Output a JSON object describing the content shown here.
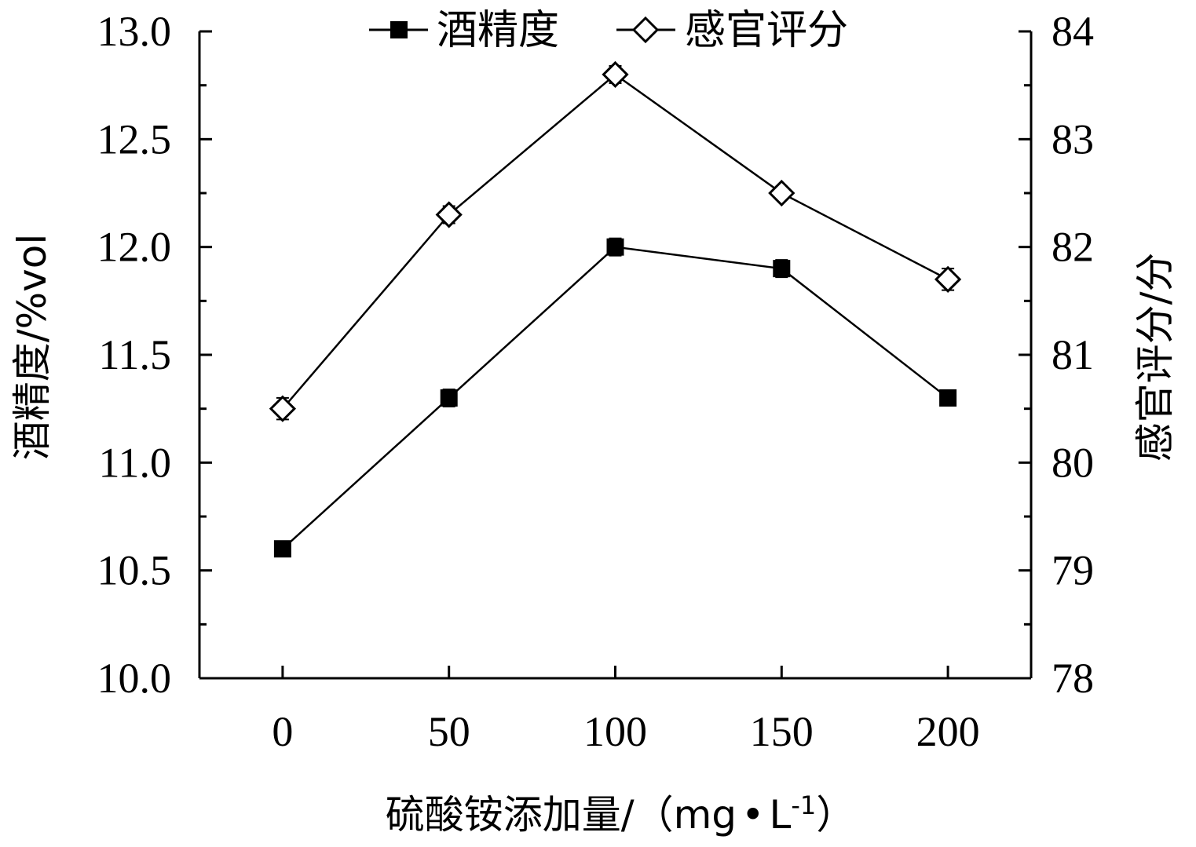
{
  "chart_data": {
    "type": "line",
    "x_title": "硫酸铵添加量/（mg",
    "x_title_dot": "•",
    "x_title_unit": "L",
    "x_title_sup": "-1",
    "x_title_close": "）",
    "y_left_title": "酒精度/%vol",
    "y_right_title": "感官评分/分",
    "x": [
      0,
      50,
      100,
      150,
      200
    ],
    "x_tick_labels": [
      "0",
      "50",
      "100",
      "150",
      "200"
    ],
    "x_range": [
      -25,
      225
    ],
    "y_left_range": [
      10.0,
      13.0
    ],
    "y_left_tick_labels": [
      "10.0",
      "10.5",
      "11.0",
      "11.5",
      "12.0",
      "12.5",
      "13.0"
    ],
    "y_right_range": [
      78,
      84
    ],
    "y_right_tick_labels": [
      "78",
      "79",
      "80",
      "81",
      "82",
      "83",
      "84"
    ],
    "grid": false,
    "legend_position": "top-center",
    "series": [
      {
        "name": "酒精度",
        "axis": "left",
        "marker": "filled-square",
        "color": "#000000",
        "values": [
          10.6,
          11.3,
          12.0,
          11.9,
          11.3
        ],
        "errors": [
          0.03,
          0.04,
          0.04,
          0.04,
          0.03
        ]
      },
      {
        "name": "感官评分",
        "axis": "right",
        "marker": "open-diamond",
        "color": "#000000",
        "values": [
          80.5,
          82.3,
          83.6,
          82.5,
          81.7
        ],
        "errors": [
          0.1,
          0.08,
          0.08,
          0.06,
          0.1
        ]
      }
    ]
  }
}
